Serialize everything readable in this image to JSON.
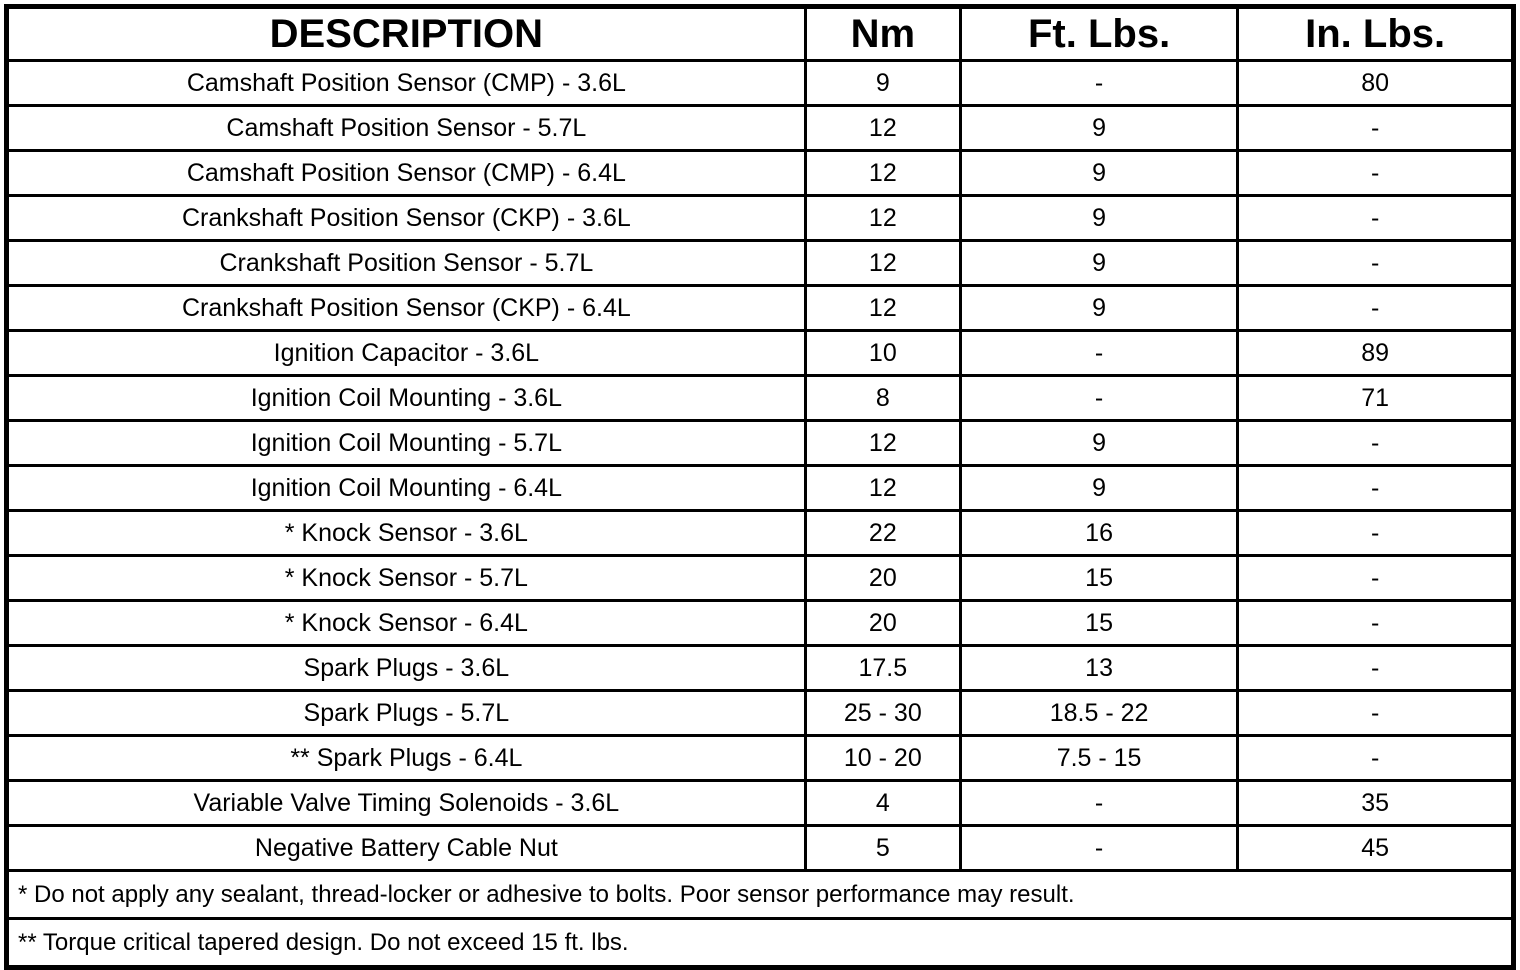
{
  "colors": {
    "border": "#000000",
    "text": "#000000",
    "background": "#ffffff"
  },
  "table": {
    "headers": [
      "DESCRIPTION",
      "Nm",
      "Ft. Lbs.",
      "In. Lbs."
    ],
    "rows": [
      [
        "Camshaft Position Sensor (CMP) - 3.6L",
        "9",
        "-",
        "80"
      ],
      [
        "Camshaft Position Sensor - 5.7L",
        "12",
        "9",
        "-"
      ],
      [
        "Camshaft Position Sensor (CMP) - 6.4L",
        "12",
        "9",
        "-"
      ],
      [
        "Crankshaft Position Sensor (CKP) - 3.6L",
        "12",
        "9",
        "-"
      ],
      [
        "Crankshaft Position Sensor - 5.7L",
        "12",
        "9",
        "-"
      ],
      [
        "Crankshaft Position Sensor (CKP) - 6.4L",
        "12",
        "9",
        "-"
      ],
      [
        "Ignition Capacitor - 3.6L",
        "10",
        "-",
        "89"
      ],
      [
        "Ignition Coil Mounting - 3.6L",
        "8",
        "-",
        "71"
      ],
      [
        "Ignition Coil Mounting - 5.7L",
        "12",
        "9",
        "-"
      ],
      [
        "Ignition Coil Mounting - 6.4L",
        "12",
        "9",
        "-"
      ],
      [
        "* Knock Sensor - 3.6L",
        "22",
        "16",
        "-"
      ],
      [
        "* Knock Sensor - 5.7L",
        "20",
        "15",
        "-"
      ],
      [
        "* Knock Sensor - 6.4L",
        "20",
        "15",
        "-"
      ],
      [
        "Spark Plugs - 3.6L",
        "17.5",
        "13",
        "-"
      ],
      [
        "Spark Plugs - 5.7L",
        "25 - 30",
        "18.5 - 22",
        "-"
      ],
      [
        "** Spark Plugs - 6.4L",
        "10 - 20",
        "7.5 - 15",
        "-"
      ],
      [
        "Variable Valve Timing Solenoids - 3.6L",
        "4",
        "-",
        "35"
      ],
      [
        "Negative Battery Cable Nut",
        "5",
        "-",
        "45"
      ]
    ],
    "footnotes": [
      "* Do not apply any sealant, thread-locker or adhesive to bolts. Poor sensor performance may result.",
      "** Torque critical tapered design. Do not exceed 15 ft. lbs."
    ]
  }
}
